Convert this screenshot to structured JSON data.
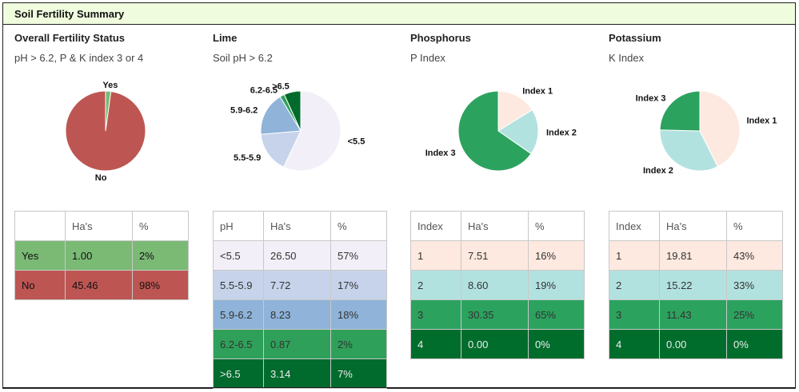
{
  "header": {
    "title": "Soil Fertility Summary"
  },
  "panels": [
    {
      "title": "Overall Fertility Status",
      "subtitle": "pH > 6.2, P & K index 3 or 4",
      "table": {
        "headers": [
          "",
          "Ha's",
          "%"
        ],
        "rows": [
          {
            "label": "Yes",
            "ha": "1.00",
            "pct": "2%"
          },
          {
            "label": "No",
            "ha": "45.46",
            "pct": "98%"
          }
        ]
      }
    },
    {
      "title": "Lime",
      "subtitle": "Soil pH > 6.2",
      "table": {
        "headers": [
          "pH",
          "Ha's",
          "%"
        ],
        "rows": [
          {
            "label": "<5.5",
            "ha": "26.50",
            "pct": "57%"
          },
          {
            "label": "5.5-5.9",
            "ha": "7.72",
            "pct": "17%"
          },
          {
            "label": "5.9-6.2",
            "ha": "8.23",
            "pct": "18%"
          },
          {
            "label": "6.2-6.5",
            "ha": "0.87",
            "pct": "2%"
          },
          {
            "label": ">6.5",
            "ha": "3.14",
            "pct": "7%"
          }
        ]
      }
    },
    {
      "title": "Phosphorus",
      "subtitle": "P Index",
      "table": {
        "headers": [
          "Index",
          "Ha's",
          "%"
        ],
        "rows": [
          {
            "label": "1",
            "ha": "7.51",
            "pct": "16%"
          },
          {
            "label": "2",
            "ha": "8.60",
            "pct": "19%"
          },
          {
            "label": "3",
            "ha": "30.35",
            "pct": "65%"
          },
          {
            "label": "4",
            "ha": "0.00",
            "pct": "0%"
          }
        ]
      }
    },
    {
      "title": "Potassium",
      "subtitle": "K Index",
      "table": {
        "headers": [
          "Index",
          "Ha's",
          "%"
        ],
        "rows": [
          {
            "label": "1",
            "ha": "19.81",
            "pct": "43%"
          },
          {
            "label": "2",
            "ha": "15.22",
            "pct": "33%"
          },
          {
            "label": "3",
            "ha": "11.43",
            "pct": "25%"
          },
          {
            "label": "4",
            "ha": "0.00",
            "pct": "0%"
          }
        ]
      }
    }
  ],
  "chart_data": [
    {
      "type": "pie",
      "title": "Overall Fertility Status",
      "categories": [
        "Yes",
        "No"
      ],
      "values": [
        1.0,
        45.46
      ],
      "colors": [
        "#7aba75",
        "#bd5652"
      ],
      "label_text": [
        "#111111",
        "#111111"
      ],
      "start_angle_deg": 0,
      "direction": "clockwise"
    },
    {
      "type": "pie",
      "title": "Lime",
      "categories": [
        "<5.5",
        "5.5-5.9",
        "5.9-6.2",
        "6.2-6.5",
        ">6.5"
      ],
      "values": [
        26.5,
        7.72,
        8.23,
        0.87,
        3.14
      ],
      "colors": [
        "#f3eff8",
        "#c6d3ea",
        "#8fb3d9",
        "#2fa05a",
        "#006b2c"
      ],
      "label_text": [
        "#333333",
        "#333333",
        "#333333",
        "#333333",
        "#eeeeee"
      ],
      "start_angle_deg": 0,
      "direction": "clockwise"
    },
    {
      "type": "pie",
      "title": "Phosphorus",
      "categories": [
        "Index 1",
        "Index 2",
        "Index 3",
        "Index 4"
      ],
      "values": [
        7.51,
        8.6,
        30.35,
        0.0
      ],
      "colors": [
        "#fde9df",
        "#b2e2e0",
        "#2ca25f",
        "#006d2c"
      ],
      "label_text": [
        "#333333",
        "#333333",
        "#333333",
        "#eeeeee"
      ],
      "start_angle_deg": 0,
      "direction": "clockwise"
    },
    {
      "type": "pie",
      "title": "Potassium",
      "categories": [
        "Index 1",
        "Index 2",
        "Index 3",
        "Index 4"
      ],
      "values": [
        19.81,
        15.22,
        11.43,
        0.0
      ],
      "colors": [
        "#fde9df",
        "#b2e2e0",
        "#2ca25f",
        "#006d2c"
      ],
      "label_text": [
        "#333333",
        "#333333",
        "#333333",
        "#eeeeee"
      ],
      "start_angle_deg": 0,
      "direction": "clockwise"
    }
  ]
}
